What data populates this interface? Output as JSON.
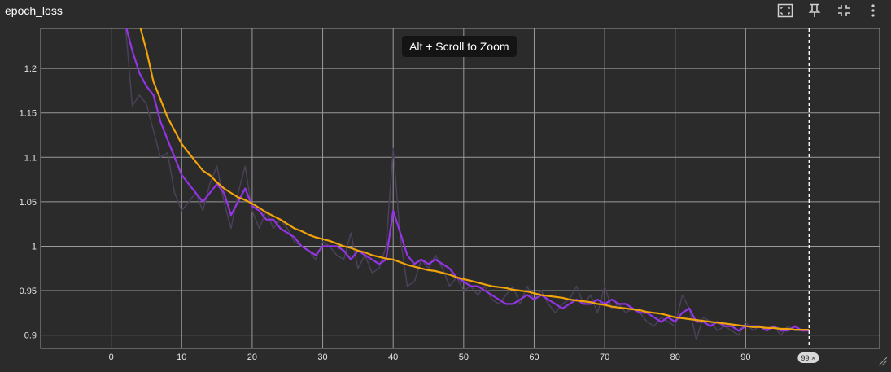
{
  "card": {
    "title": "epoch_loss"
  },
  "toolbar": {
    "icons": [
      "fit-to-data-icon",
      "pin-icon",
      "collapse-icon",
      "more-vert-icon"
    ]
  },
  "tooltip": {
    "text": "Alt + Scroll to Zoom"
  },
  "hover": {
    "step": 99,
    "badge": "99 ×"
  },
  "colors": {
    "background": "#2b2b2b",
    "grid": "#9a9a9a",
    "raw_series": "#4a4058",
    "series": "#9434e6",
    "smoothed": "#f0a30a",
    "cursor": "#ffffff"
  },
  "chart_data": {
    "type": "line",
    "title": "epoch_loss",
    "xlabel": "",
    "ylabel": "",
    "xlim": [
      -10,
      109
    ],
    "ylim": [
      0.885,
      1.245
    ],
    "x_ticks": [
      0,
      10,
      20,
      30,
      40,
      50,
      60,
      70,
      80,
      90
    ],
    "x_tick_labels": [
      "0",
      "10",
      "20",
      "30",
      "40",
      "50",
      "60",
      "70",
      "80",
      "90"
    ],
    "y_ticks": [
      0.9,
      0.95,
      1,
      1.05,
      1.1,
      1.15,
      1.2
    ],
    "y_tick_labels": [
      "0.9",
      "0.95",
      "1",
      "1.05",
      "1.1",
      "1.15",
      "1.2"
    ],
    "grid": true,
    "series": [
      {
        "role": "raw",
        "x": [
          2,
          3,
          4,
          5,
          6,
          7,
          8,
          9,
          10,
          11,
          12,
          13,
          14,
          15,
          16,
          17,
          18,
          19,
          20,
          21,
          22,
          23,
          24,
          25,
          26,
          27,
          28,
          29,
          30,
          31,
          32,
          33,
          34,
          35,
          36,
          37,
          38,
          39,
          40,
          41,
          42,
          43,
          44,
          45,
          46,
          47,
          48,
          49,
          50,
          51,
          52,
          53,
          54,
          55,
          56,
          57,
          58,
          59,
          60,
          61,
          62,
          63,
          64,
          65,
          66,
          67,
          68,
          69,
          70,
          71,
          72,
          73,
          74,
          75,
          76,
          77,
          78,
          79,
          80,
          81,
          82,
          83,
          84,
          85,
          86,
          87,
          88,
          89,
          90,
          91,
          92,
          93,
          94,
          95,
          96,
          97,
          98
        ],
        "y": [
          1.25,
          1.158,
          1.17,
          1.16,
          1.13,
          1.1,
          1.105,
          1.06,
          1.04,
          1.05,
          1.06,
          1.04,
          1.07,
          1.09,
          1.05,
          1.02,
          1.06,
          1.09,
          1.04,
          1.02,
          1.04,
          1.02,
          1.03,
          1.02,
          1.005,
          1.0,
          0.995,
          0.985,
          1.005,
          1.0,
          0.99,
          0.985,
          1.015,
          0.975,
          0.99,
          0.97,
          0.975,
          1.0,
          1.11,
          1.01,
          0.955,
          0.96,
          0.985,
          0.975,
          0.99,
          0.975,
          0.955,
          0.965,
          0.95,
          0.955,
          0.945,
          0.955,
          0.94,
          0.935,
          0.945,
          0.955,
          0.935,
          0.955,
          0.94,
          0.95,
          0.935,
          0.925,
          0.935,
          0.94,
          0.955,
          0.935,
          0.945,
          0.925,
          0.955,
          0.93,
          0.935,
          0.925,
          0.93,
          0.925,
          0.915,
          0.91,
          0.92,
          0.915,
          0.91,
          0.945,
          0.93,
          0.895,
          0.92,
          0.915,
          0.905,
          0.91,
          0.905,
          0.9,
          0.915,
          0.905,
          0.91,
          0.905,
          0.91,
          0.9,
          0.91,
          0.905,
          0.905
        ]
      },
      {
        "role": "series",
        "x": [
          2,
          3,
          4,
          5,
          6,
          7,
          8,
          9,
          10,
          11,
          12,
          13,
          14,
          15,
          16,
          17,
          18,
          19,
          20,
          21,
          22,
          23,
          24,
          25,
          26,
          27,
          28,
          29,
          30,
          31,
          32,
          33,
          34,
          35,
          36,
          37,
          38,
          39,
          40,
          41,
          42,
          43,
          44,
          45,
          46,
          47,
          48,
          49,
          50,
          51,
          52,
          53,
          54,
          55,
          56,
          57,
          58,
          59,
          60,
          61,
          62,
          63,
          64,
          65,
          66,
          67,
          68,
          69,
          70,
          71,
          72,
          73,
          74,
          75,
          76,
          77,
          78,
          79,
          80,
          81,
          82,
          83,
          84,
          85,
          86,
          87,
          88,
          89,
          90,
          91,
          92,
          93,
          94,
          95,
          96,
          97,
          98,
          99
        ],
        "y": [
          1.25,
          1.22,
          1.195,
          1.18,
          1.17,
          1.14,
          1.12,
          1.1,
          1.08,
          1.07,
          1.06,
          1.05,
          1.06,
          1.07,
          1.06,
          1.035,
          1.05,
          1.065,
          1.045,
          1.04,
          1.03,
          1.03,
          1.02,
          1.015,
          1.01,
          1.0,
          0.995,
          0.99,
          1.0,
          1.0,
          1.0,
          0.995,
          0.985,
          0.995,
          0.99,
          0.985,
          0.98,
          0.985,
          1.04,
          1.015,
          0.99,
          0.98,
          0.985,
          0.98,
          0.985,
          0.98,
          0.975,
          0.965,
          0.96,
          0.955,
          0.955,
          0.95,
          0.945,
          0.94,
          0.935,
          0.935,
          0.94,
          0.945,
          0.94,
          0.945,
          0.94,
          0.935,
          0.93,
          0.935,
          0.94,
          0.935,
          0.935,
          0.94,
          0.935,
          0.94,
          0.935,
          0.935,
          0.93,
          0.925,
          0.925,
          0.92,
          0.915,
          0.92,
          0.915,
          0.925,
          0.93,
          0.915,
          0.915,
          0.91,
          0.915,
          0.91,
          0.91,
          0.905,
          0.91,
          0.91,
          0.91,
          0.905,
          0.91,
          0.905,
          0.905,
          0.91,
          0.905,
          0.905
        ]
      },
      {
        "role": "smoothed",
        "x": [
          4,
          5,
          6,
          7,
          8,
          9,
          10,
          11,
          12,
          13,
          14,
          15,
          16,
          17,
          18,
          19,
          20,
          21,
          22,
          23,
          24,
          25,
          26,
          27,
          28,
          29,
          30,
          31,
          32,
          33,
          34,
          35,
          36,
          37,
          38,
          39,
          40,
          41,
          42,
          43,
          44,
          45,
          46,
          47,
          48,
          49,
          50,
          51,
          52,
          53,
          54,
          55,
          56,
          57,
          58,
          59,
          60,
          61,
          62,
          63,
          64,
          65,
          66,
          67,
          68,
          69,
          70,
          71,
          72,
          73,
          74,
          75,
          76,
          77,
          78,
          79,
          80,
          81,
          82,
          83,
          84,
          85,
          86,
          87,
          88,
          89,
          90,
          91,
          92,
          93,
          94,
          95,
          96,
          97,
          98,
          99
        ],
        "y": [
          1.25,
          1.22,
          1.185,
          1.165,
          1.145,
          1.13,
          1.115,
          1.105,
          1.095,
          1.085,
          1.08,
          1.072,
          1.065,
          1.06,
          1.055,
          1.052,
          1.048,
          1.043,
          1.038,
          1.034,
          1.03,
          1.025,
          1.02,
          1.017,
          1.013,
          1.01,
          1.008,
          1.006,
          1.003,
          1.0,
          0.998,
          0.995,
          0.993,
          0.99,
          0.988,
          0.986,
          0.985,
          0.982,
          0.979,
          0.977,
          0.975,
          0.973,
          0.972,
          0.97,
          0.968,
          0.965,
          0.963,
          0.961,
          0.959,
          0.957,
          0.955,
          0.954,
          0.953,
          0.951,
          0.95,
          0.949,
          0.947,
          0.945,
          0.944,
          0.943,
          0.942,
          0.94,
          0.939,
          0.938,
          0.937,
          0.935,
          0.934,
          0.932,
          0.931,
          0.93,
          0.929,
          0.928,
          0.926,
          0.925,
          0.924,
          0.922,
          0.92,
          0.919,
          0.918,
          0.917,
          0.916,
          0.915,
          0.914,
          0.913,
          0.912,
          0.911,
          0.91,
          0.909,
          0.909,
          0.908,
          0.908,
          0.907,
          0.907,
          0.906,
          0.906,
          0.906
        ]
      }
    ]
  }
}
